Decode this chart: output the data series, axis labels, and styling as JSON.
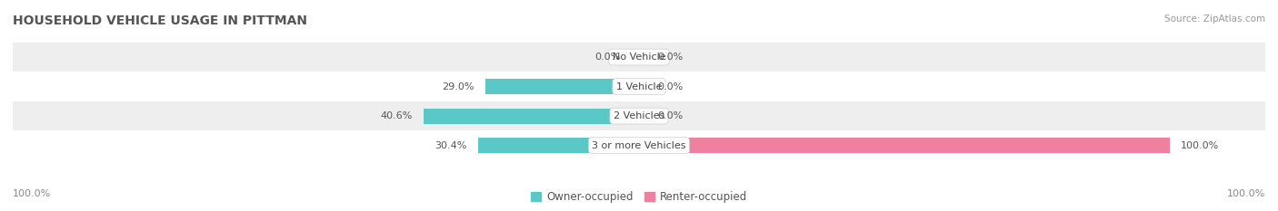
{
  "title": "HOUSEHOLD VEHICLE USAGE IN PITTMAN",
  "source": "Source: ZipAtlas.com",
  "categories": [
    "No Vehicle",
    "1 Vehicle",
    "2 Vehicles",
    "3 or more Vehicles"
  ],
  "owner_values": [
    0.0,
    29.0,
    40.6,
    30.4
  ],
  "renter_values": [
    0.0,
    0.0,
    0.0,
    100.0
  ],
  "owner_color": "#5BC8C8",
  "renter_color": "#F080A0",
  "bar_height": 0.52,
  "title_fontsize": 10,
  "label_fontsize": 8,
  "category_fontsize": 8,
  "legend_fontsize": 8.5,
  "max_val": 100.0,
  "background_color": "#FFFFFF",
  "row_colors": [
    "#EEEEEE",
    "#FFFFFF",
    "#EEEEEE",
    "#FFFFFF"
  ],
  "axis_label": "100.0%"
}
